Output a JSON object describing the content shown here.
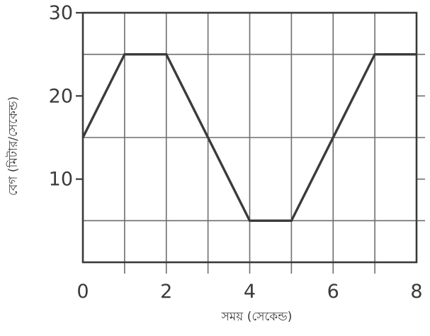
{
  "chart_data": {
    "type": "line",
    "title": "",
    "xlabel": "সময় (সেকেন্ড)",
    "ylabel": "বেগ (মিটার/সেকেন্ড)",
    "xlim": [
      0,
      8
    ],
    "ylim": [
      0,
      30
    ],
    "grid": true,
    "x_ticks": [
      0,
      2,
      4,
      6,
      8
    ],
    "y_ticks": [
      10,
      20,
      30
    ],
    "grid_x": [
      1,
      2,
      3,
      4,
      5,
      6,
      7
    ],
    "grid_y": [
      5,
      15,
      25
    ],
    "series": [
      {
        "name": "velocity",
        "x": [
          0,
          1,
          2,
          4,
          5,
          7,
          8
        ],
        "y": [
          15,
          25,
          25,
          5,
          5,
          25,
          25
        ]
      }
    ]
  }
}
